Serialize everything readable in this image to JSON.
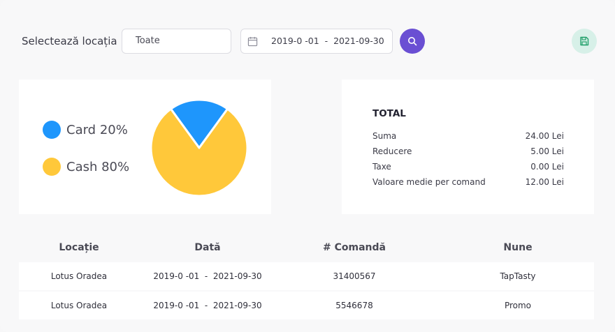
{
  "filters": {
    "location_label": "Selectează locația",
    "location_value": "Toate",
    "date_range": "2019-0 -01  -  2021-09-30"
  },
  "icons": {
    "calendar": "calendar-icon",
    "search": "search-icon",
    "save": "save-icon"
  },
  "colors": {
    "accent": "#6a4fd3",
    "save_bg": "#d7f0e8",
    "save_icon": "#22a06b",
    "card": "#1e96fc",
    "cash": "#ffc83a"
  },
  "payment": {
    "legend": [
      {
        "label": "Card 20%",
        "color": "#1e96fc"
      },
      {
        "label": "Cash 80%",
        "color": "#ffc83a"
      }
    ]
  },
  "chart_data": {
    "type": "pie",
    "categories": [
      "Card",
      "Cash"
    ],
    "values": [
      20,
      80
    ],
    "title": "",
    "legend_placement": "left"
  },
  "totals": {
    "title": "TOTAL",
    "rows": [
      {
        "label": "Suma",
        "value": "24.00 Lei"
      },
      {
        "label": "Reducere",
        "value": "5.00 Lei"
      },
      {
        "label": "Taxe",
        "value": "0.00 Lei"
      },
      {
        "label": "Valoare medie per comand",
        "value": "12.00 Lei"
      }
    ]
  },
  "table": {
    "headers": [
      "Locație",
      "Dată",
      "# Comandă",
      "Nune"
    ],
    "rows": [
      [
        "Lotus Oradea",
        "2019-0 -01  -  2021-09-30",
        "31400567",
        "TapTasty"
      ],
      [
        "Lotus Oradea",
        "2019-0 -01  -  2021-09-30",
        "5546678",
        "Promo"
      ]
    ]
  }
}
